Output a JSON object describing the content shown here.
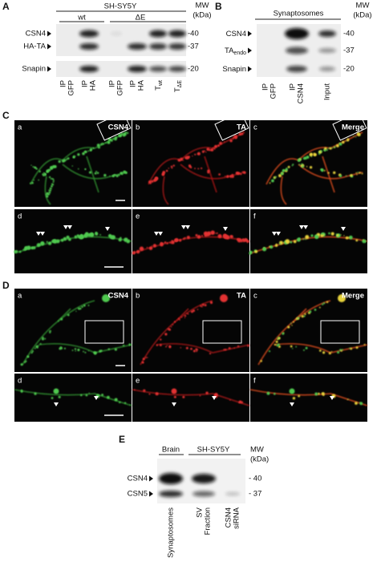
{
  "panel_a": {
    "letter": "A",
    "cell_line": "SH-SY5Y",
    "groups": [
      "wt",
      "ΔE"
    ],
    "mw": "MW",
    "mw_unit": "(kDa)",
    "rows": [
      "CSN4",
      "HA-TA",
      "Snapin"
    ],
    "markers": [
      "-40",
      "-37",
      "-20"
    ],
    "lanes": [
      [
        "IP",
        "GFP"
      ],
      [
        "IP",
        "HA"
      ],
      [
        "IP",
        "GFP"
      ],
      [
        "IP",
        "HA"
      ]
    ],
    "total_lanes": [
      {
        "main": "T",
        "sub": "wt"
      },
      {
        "main": "T",
        "sub": "ΔE"
      }
    ]
  },
  "panel_b": {
    "letter": "B",
    "sample": "Synaptosomes",
    "mw": "MW",
    "mw_unit": "(kDa)",
    "rows": [
      {
        "main": "CSN4"
      },
      {
        "main": "TA",
        "sub": "endo"
      },
      {
        "main": "Snapin"
      }
    ],
    "markers": [
      "-40",
      "-37",
      "-20"
    ],
    "lanes": [
      [
        "IP",
        "GFP"
      ],
      [
        "IP",
        "CSN4"
      ],
      [
        "Input"
      ]
    ]
  },
  "panel_c": {
    "letter": "C",
    "subpanels": [
      {
        "letter": "a",
        "label": "CSN4"
      },
      {
        "letter": "b",
        "label": "TA"
      },
      {
        "letter": "c",
        "label": "Merge"
      },
      {
        "letter": "d"
      },
      {
        "letter": "e"
      },
      {
        "letter": "f"
      }
    ]
  },
  "panel_d": {
    "letter": "D",
    "subpanels": [
      {
        "letter": "a",
        "label": "CSN4"
      },
      {
        "letter": "b",
        "label": "TA"
      },
      {
        "letter": "c",
        "label": "Merge"
      },
      {
        "letter": "d"
      },
      {
        "letter": "e"
      },
      {
        "letter": "f"
      }
    ]
  },
  "panel_e": {
    "letter": "E",
    "groups": [
      "Brain",
      "SH-SY5Y"
    ],
    "mw": "MW",
    "mw_unit": "(kDa)",
    "rows": [
      "CSN4",
      "CSN5"
    ],
    "markers": [
      "- 40",
      "- 37"
    ],
    "lanes": [
      [
        "Synaptosomes"
      ],
      [
        "SV",
        "Fraction"
      ],
      [
        "CSN4",
        "siRNA"
      ]
    ]
  }
}
